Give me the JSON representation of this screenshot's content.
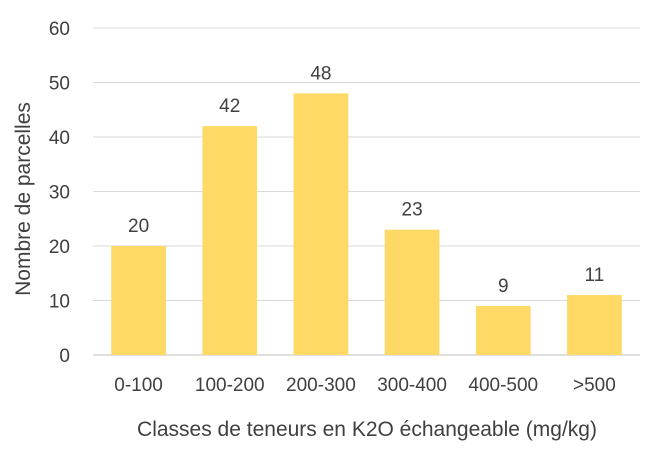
{
  "chart_data": {
    "type": "bar",
    "title": "",
    "xlabel": "Classes de teneurs en K2O échangeable (mg/kg)",
    "ylabel": "Nombre de parcelles",
    "categories": [
      "0-100",
      "100-200",
      "200-300",
      "300-400",
      "400-500",
      ">500"
    ],
    "values": [
      20,
      42,
      48,
      23,
      9,
      11
    ],
    "data_labels": [
      "20",
      "42",
      "48",
      "23",
      "9",
      "11"
    ],
    "ylim": [
      0,
      60
    ],
    "yticks": [
      0,
      10,
      20,
      30,
      40,
      50,
      60
    ],
    "ytick_labels": [
      "0",
      "10",
      "20",
      "30",
      "40",
      "50",
      "60"
    ],
    "grid": true,
    "legend": "none",
    "bar_color": "#FFD966"
  }
}
